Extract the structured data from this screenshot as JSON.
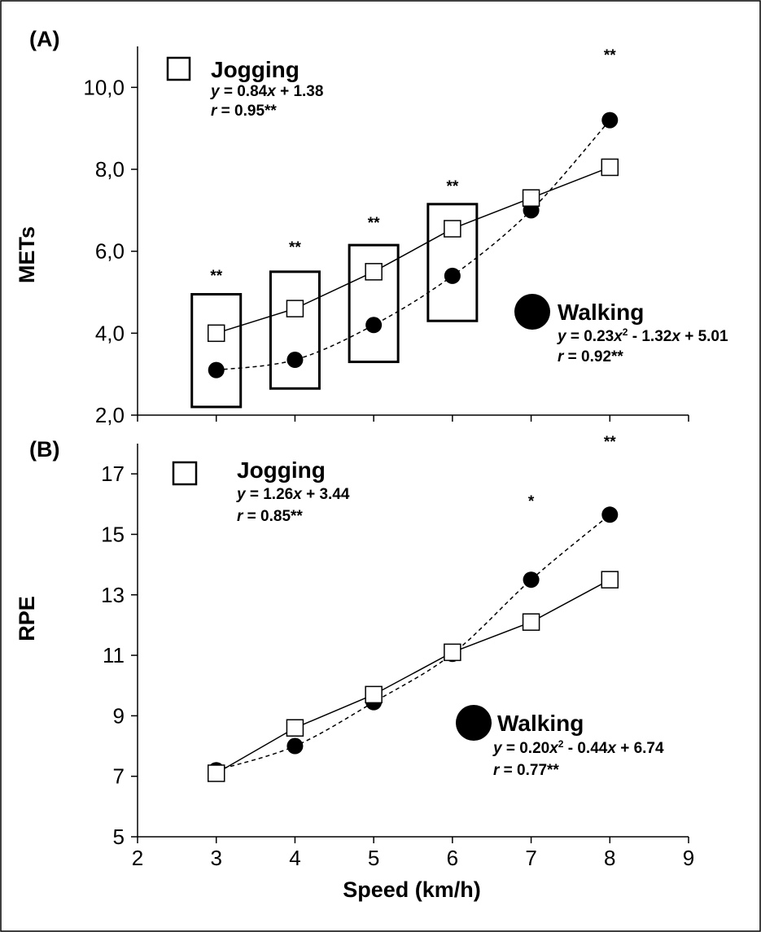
{
  "chart_data": [
    {
      "type": "scatter",
      "panel_label": "(A)",
      "ylabel": "METs",
      "xlabel": "",
      "xlim": [
        2,
        9
      ],
      "ylim": [
        2,
        11
      ],
      "x_ticks": [
        3,
        4,
        5,
        6,
        7,
        8
      ],
      "y_ticks": [
        2,
        4,
        6,
        8,
        10
      ],
      "y_tick_labels": [
        "2,0",
        "4,0",
        "6,0",
        "8,0",
        "10,0"
      ],
      "x": [
        3,
        4,
        5,
        6,
        7,
        8
      ],
      "series": [
        {
          "name": "Jogging",
          "marker": "open-square",
          "line": "solid",
          "values": [
            4.0,
            4.6,
            5.5,
            6.55,
            7.3,
            8.05
          ]
        },
        {
          "name": "Walking",
          "marker": "filled-circle",
          "line": "dashed",
          "values": [
            3.1,
            3.35,
            4.2,
            5.4,
            7.0,
            9.2
          ]
        }
      ],
      "boxes": [
        {
          "x": 3,
          "low": 2.2,
          "high": 4.95
        },
        {
          "x": 4,
          "low": 2.65,
          "high": 5.5
        },
        {
          "x": 5,
          "low": 3.3,
          "high": 6.15
        },
        {
          "x": 6,
          "low": 4.3,
          "high": 7.15
        }
      ],
      "significance": [
        "**",
        "**",
        "**",
        "**",
        "",
        "**"
      ],
      "legend": {
        "jogging": {
          "label": "Jogging",
          "equation": "y = 0.84x + 1.38",
          "r": "r = 0.95**"
        },
        "walking": {
          "label": "Walking",
          "equation": "y = 0.23x² - 1.32x + 5.01",
          "r": "r = 0.92**"
        }
      }
    },
    {
      "type": "scatter",
      "panel_label": "(B)",
      "ylabel": "RPE",
      "xlabel": "Speed (km/h)",
      "xlim": [
        2,
        9
      ],
      "ylim": [
        5,
        18
      ],
      "x_ticks": [
        2,
        3,
        4,
        5,
        6,
        7,
        8,
        9
      ],
      "y_ticks": [
        5,
        7,
        9,
        11,
        13,
        15,
        17
      ],
      "y_tick_labels": [
        "5",
        "7",
        "9",
        "11",
        "13",
        "15",
        "17"
      ],
      "x_tick_labels": [
        "2",
        "3",
        "4",
        "5",
        "6",
        "7",
        "8",
        "9"
      ],
      "x": [
        3,
        4,
        5,
        6,
        7,
        8
      ],
      "series": [
        {
          "name": "Jogging",
          "marker": "open-square",
          "line": "solid",
          "values": [
            7.1,
            8.6,
            9.7,
            11.1,
            12.1,
            13.5
          ]
        },
        {
          "name": "Walking",
          "marker": "filled-circle",
          "line": "dashed",
          "values": [
            7.2,
            8.0,
            9.45,
            11.05,
            13.5,
            15.65
          ]
        }
      ],
      "significance": [
        "",
        "",
        "",
        "",
        "*",
        "**"
      ],
      "legend": {
        "jogging": {
          "label": "Jogging",
          "equation": "y = 1.26x + 3.44",
          "r": "r = 0.85**"
        },
        "walking": {
          "label": "Walking",
          "equation": "y = 0.20x² - 0.44x + 6.74",
          "r": "r = 0.77**"
        }
      }
    }
  ]
}
